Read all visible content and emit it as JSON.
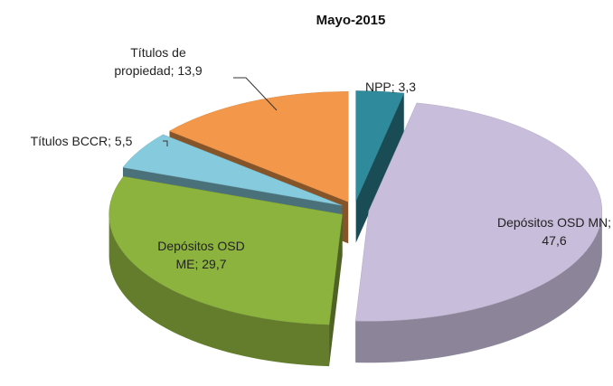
{
  "chart_data": {
    "type": "pie",
    "title": "Mayo-2015",
    "labels": [
      "NPP; 3,3",
      "Depósitos OSD MN; 47,6",
      "Depósitos OSD ME; 29,7",
      "Títulos BCCR; 5,5",
      "Títulos de propiedad; 13,9"
    ],
    "values": [
      3.3,
      47.6,
      29.7,
      5.5,
      13.9
    ],
    "colors": [
      "#2f8a9c",
      "#c8bedb",
      "#8db33f",
      "#86cbdd",
      "#f3984a"
    ]
  }
}
